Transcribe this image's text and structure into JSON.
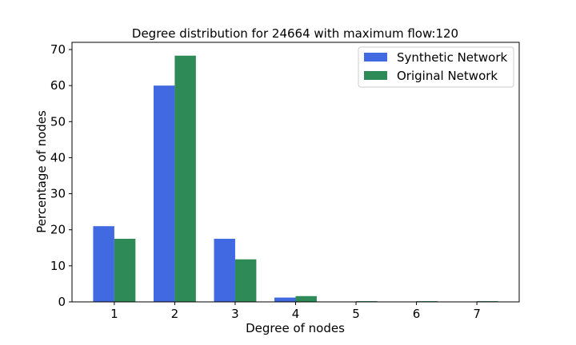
{
  "chart_data": {
    "type": "bar",
    "title": "Degree distribution for 24664 with maximum flow:120",
    "xlabel": "Degree of nodes",
    "ylabel": "Percentage of nodes",
    "categories": [
      "1",
      "2",
      "3",
      "4",
      "5",
      "6",
      "7"
    ],
    "ylim": [
      0,
      72
    ],
    "yticks": [
      0,
      10,
      20,
      30,
      40,
      50,
      60,
      70
    ],
    "grid": false,
    "legend_position": "top-right",
    "series": [
      {
        "name": "Synthetic Network",
        "color": "#4169E1",
        "values": [
          21.0,
          60.0,
          17.5,
          1.2,
          0.0,
          0.0,
          0.1
        ]
      },
      {
        "name": "Original Network",
        "color": "#2E8B57",
        "values": [
          17.5,
          68.3,
          11.8,
          1.6,
          0.2,
          0.2,
          0.2
        ]
      }
    ]
  }
}
